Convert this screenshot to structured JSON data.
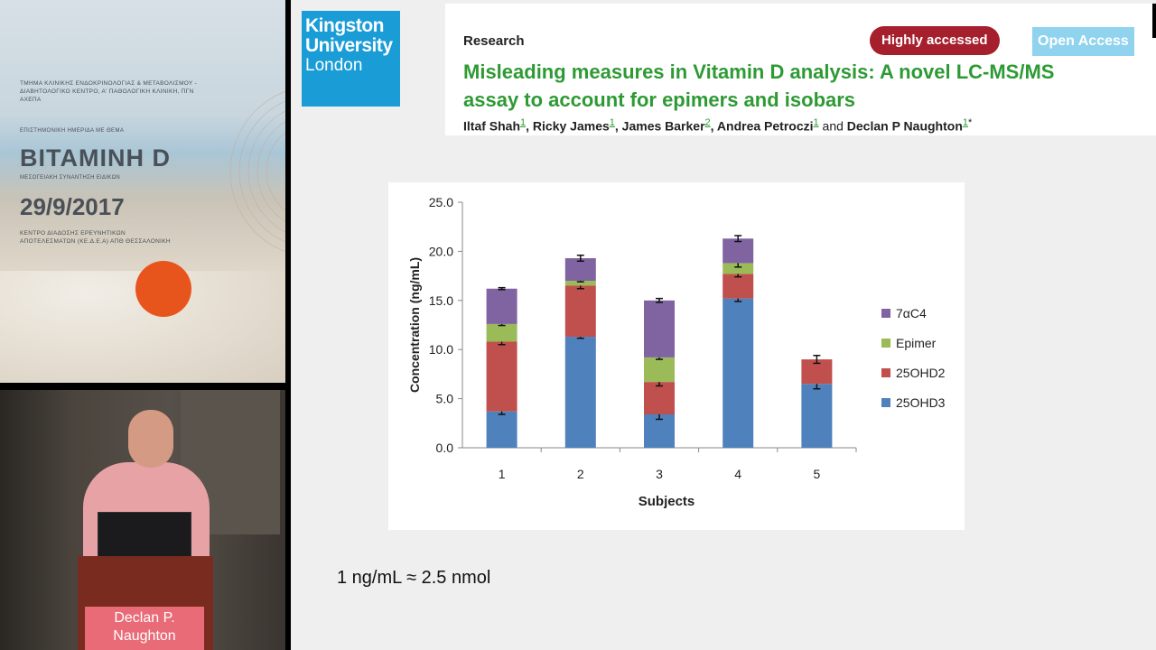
{
  "poster": {
    "header": "ΤΜΗΜΑ ΚΛΙΝΙΚΗΣ ΕΝΔΟΚΡΙΝΟΛΟΓΙΑΣ & ΜΕΤΑΒΟΛΙΣΜΟΥ - ΔΙΑΒΗΤΟΛΟΓΙΚΟ ΚΕΝΤΡΟ, Α' ΠΑΘΟΛΟΓΙΚΗ ΚΛΙΝΙΚΗ, ΠΓΝ ΑΧΕΠΑ",
    "theme": "ΕΠΙΣΤΗΜΟΝΙΚΗ ΗΜΕΡΙΔΑ ΜΕ ΘΕΜΑ",
    "topic": "ΒΙΤΑΜΙΝΗ D",
    "subtitle": "ΜΕΣΟΓΕΙΑΚΗ ΣΥΝΑΝΤΗΣΗ ΕΙΔΙΚΩΝ",
    "date": "29/9/2017",
    "location": "ΚΕΝΤΡΟ ΔΙΑΔΟΣΗΣ ΕΡΕΥΝΗΤΙΚΩΝ ΑΠΟΤΕΛΕΣΜΑΤΩΝ (ΚΕ.Δ.Ε.Α) ΑΠΘ ΘΕΣΣΑΛΟΝΙΚΗ"
  },
  "speaker": {
    "name_line1": "Declan P.",
    "name_line2": "Naughton"
  },
  "slide": {
    "logo": {
      "line1": "Kingston",
      "line2": "University",
      "line3": "London"
    },
    "paper": {
      "section": "Research",
      "badge_highly": "Highly accessed",
      "badge_open": "Open Access",
      "title": "Misleading measures in Vitamin D analysis: A novel LC-MS/MS assay to account for epimers and isobars",
      "authors": [
        {
          "name": "Iltaf Shah",
          "aff": "1",
          "sep": ", "
        },
        {
          "name": "Ricky James",
          "aff": "1",
          "sep": ", "
        },
        {
          "name": "James Barker",
          "aff": "2",
          "sep": ", "
        },
        {
          "name": "Andrea Petroczi",
          "aff": "1",
          "sep": " and "
        },
        {
          "name": "Declan P Naughton",
          "aff": "1",
          "sep": ""
        }
      ],
      "corresponding_mark": "*"
    },
    "conversion_note": "1 ng/mL ≈ 2.5 nmol"
  },
  "chart_data": {
    "type": "bar",
    "stacked": true,
    "title": "",
    "xlabel": "Subjects",
    "ylabel": "Concentration (ng/mL)",
    "categories": [
      "1",
      "2",
      "3",
      "4",
      "5"
    ],
    "ylim": [
      0,
      25
    ],
    "yticks": [
      "0.0",
      "5.0",
      "10.0",
      "15.0",
      "20.0",
      "25.0"
    ],
    "grid": false,
    "legend_position": "right",
    "series": [
      {
        "name": "25OHD3",
        "color": "#4f81bd",
        "values": [
          3.7,
          11.3,
          3.4,
          15.2,
          6.5
        ],
        "errors": [
          0.3,
          0.15,
          0.5,
          0.3,
          0.5
        ]
      },
      {
        "name": "25OHD2",
        "color": "#c0504d",
        "values": [
          7.1,
          5.2,
          3.3,
          2.5,
          2.5
        ],
        "errors": [
          0.3,
          0.3,
          0.4,
          0.3,
          0.4
        ]
      },
      {
        "name": "Epimer",
        "color": "#9bbb59",
        "values": [
          1.8,
          0.5,
          2.5,
          1.1,
          0
        ],
        "errors": [
          0.15,
          0.1,
          0.2,
          0.4,
          0
        ]
      },
      {
        "name": "7αC4",
        "color": "#8064a2",
        "values": [
          3.6,
          2.3,
          5.8,
          2.5,
          0
        ],
        "errors": [
          0.1,
          0.3,
          0.2,
          0.3,
          0
        ]
      }
    ]
  }
}
